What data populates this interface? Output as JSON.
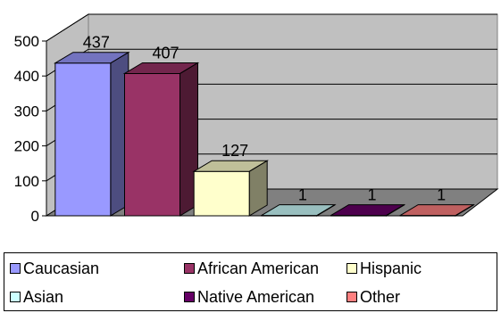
{
  "chart_data": {
    "type": "bar",
    "categories": [
      "Caucasian",
      "African American",
      "Hispanic",
      "Asian",
      "Native American",
      "Other"
    ],
    "values": [
      437,
      407,
      127,
      1,
      1,
      1
    ],
    "data_labels": [
      "437",
      "407",
      "127",
      "1",
      "1",
      "1"
    ],
    "y_ticks": [
      "0",
      "100",
      "200",
      "300",
      "400",
      "500"
    ],
    "ylim": [
      0,
      500
    ],
    "grid": true,
    "three_d": true,
    "legend_position": "bottom",
    "colors": [
      "#9999ff",
      "#993366",
      "#ffffcc",
      "#ccffff",
      "#660066",
      "#ff8080"
    ],
    "title": "",
    "xlabel": "",
    "ylabel": ""
  },
  "legend": {
    "items": [
      {
        "label": "Caucasian",
        "color": "#9999ff"
      },
      {
        "label": "African American",
        "color": "#993366"
      },
      {
        "label": "Hispanic",
        "color": "#ffffcc"
      },
      {
        "label": "Asian",
        "color": "#ccffff"
      },
      {
        "label": "Native American",
        "color": "#660066"
      },
      {
        "label": "Other",
        "color": "#ff8080"
      }
    ]
  }
}
